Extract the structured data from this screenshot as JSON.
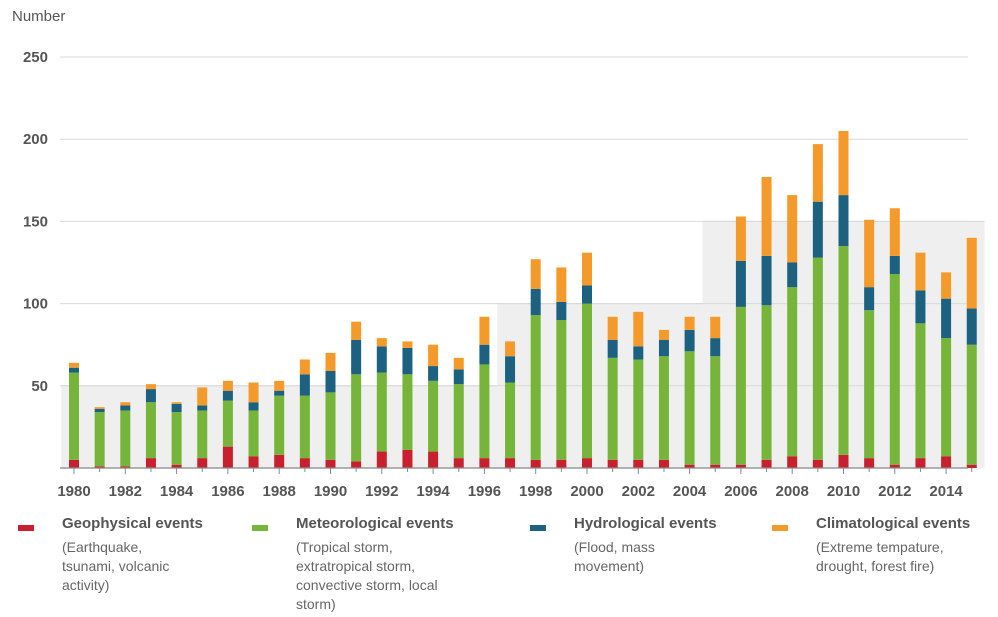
{
  "chart_data": {
    "type": "bar",
    "stacked": true,
    "ylabel": "Number",
    "ylim": [
      0,
      250
    ],
    "yticks": [
      50,
      100,
      150,
      200,
      250
    ],
    "grid": true,
    "x": [
      1980,
      1981,
      1982,
      1983,
      1984,
      1985,
      1986,
      1987,
      1988,
      1989,
      1990,
      1991,
      1992,
      1993,
      1994,
      1995,
      1996,
      1997,
      1998,
      1999,
      2000,
      2001,
      2002,
      2003,
      2004,
      2005,
      2006,
      2007,
      2008,
      2009,
      2010,
      2011,
      2012,
      2013,
      2014,
      2015
    ],
    "xtick_labels": [
      "1980",
      "1982",
      "1984",
      "1986",
      "1988",
      "1990",
      "1992",
      "1994",
      "1996",
      "1998",
      "2000",
      "2002",
      "2004",
      "2006",
      "2008",
      "2010",
      "2012",
      "2014"
    ],
    "series": [
      {
        "name": "Geophysical events",
        "color": "#c8202f",
        "values": [
          5,
          1,
          1,
          6,
          2,
          6,
          13,
          7,
          8,
          6,
          5,
          4,
          10,
          11,
          10,
          6,
          6,
          6,
          5,
          5,
          6,
          5,
          5,
          5,
          2,
          2,
          2,
          5,
          7,
          5,
          8,
          6,
          2,
          6,
          7,
          2
        ]
      },
      {
        "name": "Meteorological events",
        "color": "#76b43a",
        "values": [
          53,
          33,
          34,
          34,
          32,
          29,
          28,
          28,
          36,
          38,
          41,
          53,
          48,
          46,
          43,
          45,
          57,
          46,
          88,
          85,
          94,
          62,
          61,
          63,
          69,
          66,
          96,
          94,
          103,
          123,
          127,
          90,
          116,
          82,
          72,
          73
        ]
      },
      {
        "name": "Hydrological events",
        "color": "#1c6280",
        "values": [
          3,
          2,
          3,
          8,
          5,
          3,
          6,
          5,
          3,
          13,
          13,
          21,
          16,
          16,
          9,
          9,
          12,
          16,
          16,
          11,
          11,
          11,
          8,
          10,
          13,
          11,
          28,
          30,
          15,
          34,
          31,
          14,
          11,
          20,
          24,
          22
        ]
      },
      {
        "name": "Climatological events",
        "color": "#f39a2a",
        "values": [
          3,
          1,
          2,
          3,
          1,
          11,
          6,
          12,
          6,
          9,
          11,
          11,
          5,
          4,
          13,
          7,
          17,
          9,
          18,
          21,
          20,
          14,
          21,
          6,
          8,
          13,
          27,
          48,
          41,
          35,
          39,
          41,
          29,
          23,
          16,
          43
        ]
      }
    ],
    "legend": [
      {
        "title": "Geophysical events",
        "color": "#c8202f",
        "lines": [
          "(Earthquake,",
          "tsunami, volcanic",
          "activity)"
        ]
      },
      {
        "title": "Meteorological events",
        "color": "#76b43a",
        "lines": [
          "(Tropical storm,",
          "extratropical storm,",
          "convective storm, local",
          "storm)"
        ]
      },
      {
        "title": "Hydrological events",
        "color": "#1c6280",
        "lines": [
          "(Flood, mass",
          "movement)"
        ]
      },
      {
        "title": "Climatological events",
        "color": "#f39a2a",
        "lines": [
          "(Extreme tempature,",
          "drought, forest fire)"
        ]
      }
    ],
    "shaded_bands": [
      {
        "from_year": 1980,
        "to_year": 1997,
        "level": 50
      },
      {
        "from_year": 1997,
        "to_year": 2005,
        "level": 100
      },
      {
        "from_year": 2005,
        "to_year": 2015,
        "level": 150
      }
    ]
  }
}
